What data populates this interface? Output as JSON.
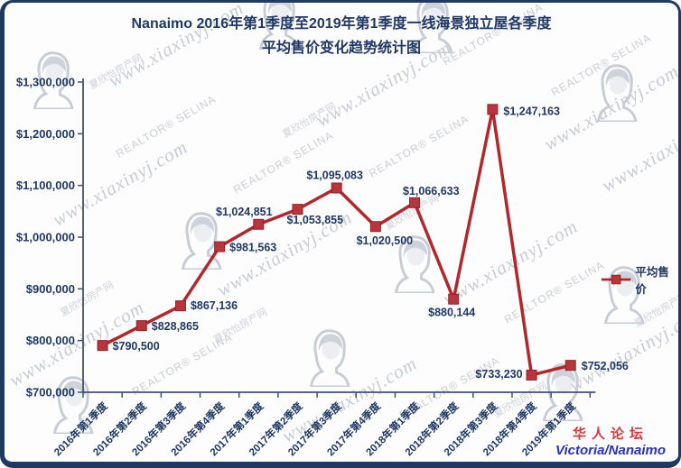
{
  "header": {
    "title_line1": "Nanaimo 2016年第1季度至2019年第1季度一线海景独立屋各季度",
    "title_line2": "平均售价变化趋势统计图"
  },
  "legend": {
    "label": "平均售价"
  },
  "branding": {
    "forum_name": "华人论坛",
    "forum_sub": "Victoria/Nanaimo"
  },
  "watermark": {
    "url_text": "www.xiaxinyj.com",
    "realtor_text": "REALTOR® SELINA",
    "cn_text": "夏欣怡房产网"
  },
  "colors": {
    "line": "#B2272B",
    "marker": "#B8363B",
    "navy": "#1F3864",
    "axis": "#3E5277",
    "brand_red": "#DC3438",
    "brand_blue": "#2630C8"
  },
  "chart_data": {
    "type": "line",
    "title": "Nanaimo 2016年第1季度至2019年第1季度一线海景独立屋各季度平均售价变化趋势统计图",
    "categories": [
      "2016年第1季度",
      "2016年第2季度",
      "2016年第3季度",
      "2016年第4季度",
      "2017年第1季度",
      "2017年第2季度",
      "2017年第3季度",
      "2017年第4季度",
      "2018年第1季度",
      "2018年第2季度",
      "2018年第3季度",
      "2018年第4季度",
      "2019年第1季度"
    ],
    "series": [
      {
        "name": "平均售价",
        "values": [
          790500,
          828865,
          867136,
          981563,
          1024851,
          1053855,
          1095083,
          1020500,
          1066633,
          880144,
          1247163,
          733230,
          752056
        ]
      }
    ],
    "point_labels": [
      "$790,500",
      "$828,865",
      "$867,136",
      "$981,563",
      "$1,024,851",
      "$1,053,855",
      "$1,095,083",
      "$1,020,500",
      "$1,066,633",
      "$880,144",
      "$1,247,163",
      "$733,230",
      "$752,056"
    ],
    "ylim": [
      700000,
      1300000
    ],
    "ytick_step": 100000,
    "ytick_labels": [
      "$700,000",
      "$800,000",
      "$900,000",
      "$1,000,000",
      "$1,100,000",
      "$1,200,000",
      "$1,300,000"
    ],
    "xlabel": "",
    "ylabel": "",
    "grid": false,
    "legend_position": "right-middle"
  }
}
